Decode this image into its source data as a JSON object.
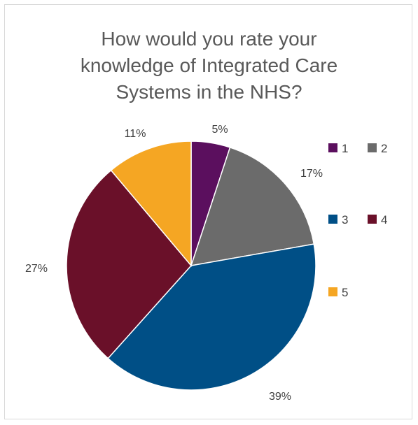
{
  "chart_data": {
    "type": "pie",
    "title_lines": [
      "How would you rate your",
      "knowledge of Integrated Care",
      "Systems in the NHS?"
    ],
    "categories": [
      "1",
      "2",
      "3",
      "4",
      "5"
    ],
    "values": [
      5,
      17,
      39,
      27,
      11
    ],
    "data_labels": [
      "5%",
      "17%",
      "39%",
      "27%",
      "11%"
    ],
    "colors": [
      "#5b0f5e",
      "#6b6b6b",
      "#004f86",
      "#6a1029",
      "#f5a623"
    ],
    "legend_position": "right",
    "start_angle_deg": 0,
    "direction": "clockwise"
  }
}
